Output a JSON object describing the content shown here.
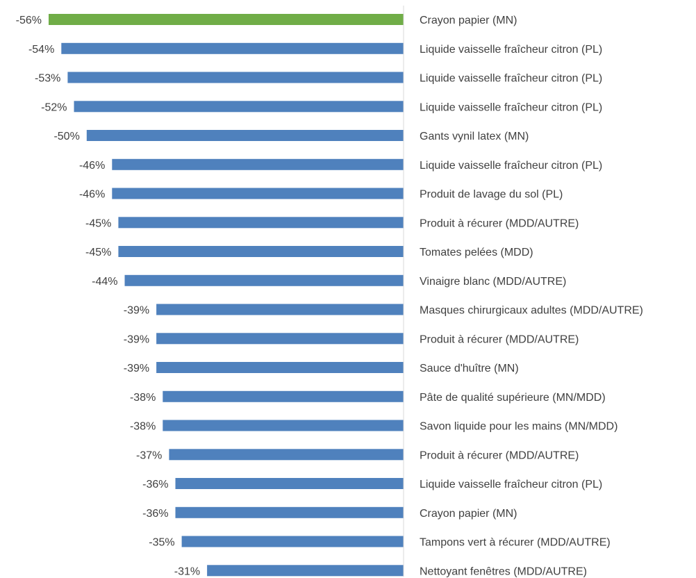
{
  "chart_data": {
    "type": "bar",
    "orientation": "horizontal",
    "title": "",
    "xlabel": "",
    "ylabel": "",
    "value_format": "percent",
    "xlim": [
      -56,
      0
    ],
    "grid": false,
    "legend": "none",
    "colors": {
      "default_bar": "#4F81BD",
      "highlight_bar": "#70AD47",
      "axis_line": "#D9D9D9",
      "text": "#404040"
    },
    "highlight_index": 0,
    "categories": [
      "Crayon papier (MN)",
      "Liquide vaisselle fraîcheur citron (PL)",
      "Liquide vaisselle fraîcheur citron (PL)",
      "Liquide vaisselle fraîcheur citron (PL)",
      "Gants vynil latex (MN)",
      "Liquide vaisselle fraîcheur citron (PL)",
      "Produit de lavage du sol (PL)",
      "Produit à récurer (MDD/AUTRE)",
      "Tomates pelées (MDD)",
      "Vinaigre blanc (MDD/AUTRE)",
      "Masques chirurgicaux adultes (MDD/AUTRE)",
      "Produit à récurer (MDD/AUTRE)",
      "Sauce d'huître (MN)",
      "Pâte de qualité supérieure (MN/MDD)",
      "Savon liquide pour les mains (MN/MDD)",
      "Produit à récurer (MDD/AUTRE)",
      "Liquide vaisselle fraîcheur citron (PL)",
      "Crayon papier (MN)",
      "Tampons vert à récurer (MDD/AUTRE)",
      "Nettoyant fenêtres (MDD/AUTRE)"
    ],
    "values": [
      -56,
      -54,
      -53,
      -52,
      -50,
      -46,
      -46,
      -45,
      -45,
      -44,
      -39,
      -39,
      -39,
      -38,
      -38,
      -37,
      -36,
      -36,
      -35,
      -31
    ],
    "data_labels": [
      "-56%",
      "-54%",
      "-53%",
      "-52%",
      "-50%",
      "-46%",
      "-46%",
      "-45%",
      "-45%",
      "-44%",
      "-39%",
      "-39%",
      "-39%",
      "-38%",
      "-38%",
      "-37%",
      "-36%",
      "-36%",
      "-35%",
      "-31%"
    ]
  }
}
